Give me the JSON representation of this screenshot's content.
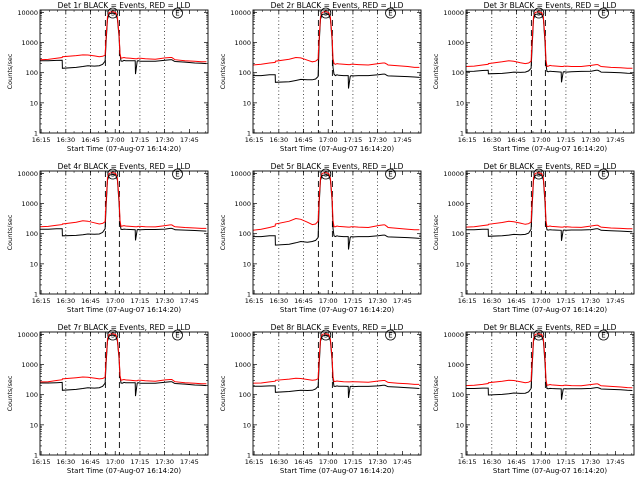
{
  "layout_note": "3x3 grid of detector count-rate plots",
  "chart_data": {
    "type": "line",
    "shared": {
      "ylabel": "Counts/sec",
      "xlabel": "Start Time (07-Aug-07 16:14:20)",
      "x_tick_labels": [
        "16:15",
        "16:30",
        "16:45",
        "17:00",
        "17:15",
        "17:30",
        "17:45"
      ],
      "x_ticks_min": [
        0.67,
        15.67,
        30.67,
        45.67,
        60.67,
        75.67,
        90.67
      ],
      "x_range_min": [
        0,
        102
      ],
      "y_scale": "log",
      "ylim": [
        1,
        12000
      ],
      "y_tick_labels": [
        "1",
        "10",
        "100",
        "1000",
        "10000"
      ],
      "y_ticks": [
        1,
        10,
        100,
        1000,
        10000
      ],
      "dotted_vlines_min": [
        15.67,
        30.67,
        60.67,
        75.67
      ],
      "dashed_vlines_min": [
        39.7,
        48.2
      ],
      "flag_markers": [
        {
          "label": "S",
          "x_min": 44.2
        },
        {
          "label": "E",
          "x_min": 83.5
        }
      ],
      "series_colors": {
        "events": "#000000",
        "lld": "#ff0000"
      },
      "time_min": [
        0,
        5,
        10,
        13.5,
        13.6,
        22,
        26,
        29,
        33,
        36,
        38,
        39.5,
        40.2,
        41,
        42,
        44,
        46,
        47,
        48,
        48.6,
        49.2,
        50,
        51,
        52,
        55,
        57.8,
        58,
        59,
        59.5,
        61,
        64,
        70,
        76,
        79,
        80,
        81.5,
        82,
        88,
        94,
        98,
        101
      ]
    },
    "panels": [
      {
        "title": "Det 1r BLACK = Events, RED = LLD",
        "series": [
          {
            "name": "Events",
            "values": [
              250,
              250,
              255,
              258,
              140,
              150,
              160,
              170,
              165,
              170,
              190,
              240,
              1200,
              6000,
              9000,
              9500,
              9000,
              6000,
              1500,
              400,
              245,
              240,
              255,
              250,
              250,
              250,
              90,
              240,
              250,
              240,
              240,
              240,
              260,
              270,
              270,
              240,
              235,
              225,
              210,
              205,
              200
            ]
          },
          {
            "name": "LLD",
            "values": [
              270,
              275,
              300,
              320,
              340,
              370,
              390,
              385,
              360,
              340,
              350,
              380,
              1700,
              7200,
              10000,
              10500,
              9800,
              7000,
              1800,
              440,
              300,
              310,
              320,
              310,
              300,
              290,
              290,
              290,
              300,
              300,
              290,
              280,
              310,
              320,
              320,
              280,
              270,
              250,
              240,
              230,
              230
            ]
          }
        ]
      },
      {
        "title": "Det 2r BLACK = Events, RED = LLD",
        "series": [
          {
            "name": "Events",
            "values": [
              80,
              80,
              85,
              85,
              48,
              50,
              55,
              60,
              58,
              58,
              62,
              75,
              1000,
              6000,
              8500,
              9000,
              8500,
              6000,
              1200,
              150,
              90,
              80,
              85,
              82,
              80,
              80,
              30,
              75,
              80,
              78,
              80,
              80,
              85,
              90,
              90,
              80,
              78,
              76,
              74,
              72,
              70
            ]
          },
          {
            "name": "LLD",
            "values": [
              180,
              190,
              210,
              220,
              240,
              280,
              320,
              310,
              260,
              230,
              240,
              280,
              1500,
              7200,
              10000,
              10800,
              9800,
              7000,
              1500,
              300,
              200,
              190,
              200,
              195,
              190,
              185,
              185,
              185,
              190,
              190,
              185,
              180,
              200,
              210,
              210,
              190,
              180,
              170,
              160,
              150,
              150
            ]
          }
        ]
      },
      {
        "title": "Det 3r BLACK = Events, RED = LLD",
        "series": [
          {
            "name": "Events",
            "values": [
              110,
              112,
              118,
              120,
              92,
              95,
              100,
              105,
              102,
              105,
              115,
              140,
              800,
              6000,
              8500,
              9000,
              8500,
              6000,
              900,
              180,
              110,
              108,
              112,
              110,
              108,
              105,
              48,
              105,
              108,
              105,
              108,
              110,
              112,
              120,
              120,
              110,
              105,
              102,
              100,
              96,
              95
            ]
          },
          {
            "name": "LLD",
            "values": [
              160,
              165,
              180,
              190,
              200,
              230,
              250,
              240,
              215,
              200,
              210,
              240,
              1300,
              7200,
              10000,
              10600,
              9800,
              7000,
              1300,
              260,
              160,
              165,
              175,
              170,
              165,
              160,
              160,
              160,
              165,
              165,
              160,
              160,
              175,
              185,
              185,
              165,
              160,
              150,
              145,
              140,
              140
            ]
          }
        ]
      },
      {
        "title": "Det 4r BLACK = Events, RED = LLD",
        "series": [
          {
            "name": "Events",
            "values": [
              140,
              140,
              145,
              145,
              85,
              88,
              92,
              98,
              96,
              98,
              110,
              145,
              900,
              6000,
              8800,
              9200,
              8800,
              6000,
              1000,
              220,
              140,
              138,
              142,
              140,
              138,
              136,
              60,
              135,
              138,
              136,
              138,
              138,
              142,
              150,
              150,
              140,
              135,
              132,
              128,
              124,
              122
            ]
          },
          {
            "name": "LLD",
            "values": [
              170,
              175,
              190,
              200,
              210,
              240,
              270,
              260,
              230,
              210,
              220,
              250,
              1400,
              7200,
              10000,
              10700,
              9800,
              7000,
              1400,
              280,
              175,
              180,
              185,
              180,
              175,
              170,
              170,
              170,
              175,
              175,
              170,
              168,
              185,
              195,
              195,
              175,
              170,
              160,
              155,
              150,
              150
            ]
          }
        ]
      },
      {
        "title": "Det 5r BLACK = Events, RED = LLD",
        "series": [
          {
            "name": "Events",
            "values": [
              80,
              80,
              85,
              85,
              42,
              45,
              50,
              55,
              52,
              55,
              60,
              75,
              1000,
              6000,
              8500,
              9000,
              8500,
              6000,
              1200,
              150,
              85,
              80,
              85,
              82,
              80,
              80,
              30,
              75,
              80,
              78,
              80,
              80,
              85,
              90,
              90,
              80,
              78,
              76,
              74,
              72,
              70
            ]
          },
          {
            "name": "LLD",
            "values": [
              130,
              140,
              160,
              180,
              210,
              260,
              320,
              300,
              240,
              200,
              210,
              260,
              1500,
              7200,
              10000,
              10800,
              9800,
              7000,
              1500,
              280,
              170,
              170,
              180,
              175,
              170,
              165,
              165,
              165,
              170,
              170,
              165,
              160,
              185,
              195,
              195,
              170,
              160,
              150,
              140,
              135,
              135
            ]
          }
        ]
      },
      {
        "title": "Det 6r BLACK = Events, RED = LLD",
        "series": [
          {
            "name": "Events",
            "values": [
              135,
              135,
              140,
              140,
              82,
              85,
              90,
              95,
              92,
              95,
              105,
              140,
              850,
              6000,
              8600,
              9100,
              8600,
              6000,
              950,
              200,
              135,
              132,
              136,
              134,
              132,
              130,
              58,
              130,
              133,
              131,
              133,
              133,
              137,
              145,
              145,
              135,
              130,
              126,
              122,
              118,
              116
            ]
          },
          {
            "name": "LLD",
            "values": [
              165,
              170,
              185,
              195,
              205,
              235,
              260,
              250,
              225,
              205,
              215,
              245,
              1350,
              7200,
              10000,
              10600,
              9800,
              7000,
              1350,
              270,
              170,
              175,
              180,
              175,
              170,
              165,
              165,
              165,
              170,
              170,
              165,
              162,
              180,
              190,
              190,
              170,
              165,
              155,
              150,
              145,
              145
            ]
          }
        ]
      },
      {
        "title": "Det 7r BLACK = Events, RED = LLD",
        "series": [
          {
            "name": "Events",
            "values": [
              245,
              245,
              250,
              255,
              140,
              150,
              160,
              170,
              165,
              170,
              190,
              240,
              1200,
              6000,
              9000,
              9500,
              9000,
              6000,
              1500,
              400,
              245,
              240,
              255,
              250,
              250,
              250,
              90,
              240,
              250,
              240,
              240,
              240,
              260,
              270,
              270,
              240,
              235,
              225,
              210,
              205,
              200
            ]
          },
          {
            "name": "LLD",
            "values": [
              265,
              270,
              295,
              315,
              335,
              365,
              385,
              380,
              355,
              335,
              345,
              375,
              1700,
              7200,
              10000,
              10500,
              9800,
              7000,
              1800,
              440,
              300,
              310,
              320,
              310,
              300,
              290,
              290,
              290,
              300,
              300,
              290,
              280,
              310,
              320,
              320,
              280,
              270,
              250,
              240,
              230,
              230
            ]
          }
        ]
      },
      {
        "title": "Det 8r BLACK = Events, RED = LLD",
        "series": [
          {
            "name": "Events",
            "values": [
              190,
              190,
              195,
              195,
              120,
              128,
              135,
              140,
              138,
              140,
              155,
              190,
              1000,
              6000,
              8800,
              9300,
              8800,
              6000,
              1300,
              320,
              190,
              188,
              195,
              192,
              190,
              188,
              78,
              185,
              190,
              186,
              188,
              188,
              195,
              205,
              205,
              190,
              185,
              178,
              170,
              165,
              160
            ]
          },
          {
            "name": "LLD",
            "values": [
              240,
              245,
              265,
              280,
              300,
              330,
              350,
              345,
              320,
              300,
              310,
              340,
              1600,
              7200,
              10000,
              10600,
              9800,
              7000,
              1700,
              400,
              270,
              275,
              285,
              280,
              270,
              265,
              265,
              265,
              270,
              270,
              265,
              260,
              285,
              295,
              295,
              265,
              255,
              240,
              230,
              220,
              220
            ]
          }
        ]
      },
      {
        "title": "Det 9r BLACK = Events, RED = LLD",
        "series": [
          {
            "name": "Events",
            "values": [
              160,
              160,
              165,
              165,
              98,
              102,
              108,
              114,
              110,
              112,
              125,
              160,
              900,
              6000,
              8600,
              9100,
              8600,
              6000,
              1000,
              250,
              160,
              158,
              162,
              160,
              158,
              156,
              68,
              155,
              158,
              156,
              158,
              158,
              162,
              172,
              172,
              160,
              155,
              150,
              145,
              140,
              138
            ]
          },
          {
            "name": "LLD",
            "values": [
              200,
              205,
              220,
              235,
              250,
              280,
              300,
              295,
              270,
              250,
              260,
              290,
              1450,
              7200,
              10000,
              10600,
              9800,
              7000,
              1450,
              320,
              205,
              210,
              218,
              212,
              205,
              200,
              200,
              200,
              205,
              205,
              200,
              198,
              218,
              228,
              228,
              205,
              198,
              188,
              180,
              172,
              170
            ]
          }
        ]
      }
    ]
  }
}
